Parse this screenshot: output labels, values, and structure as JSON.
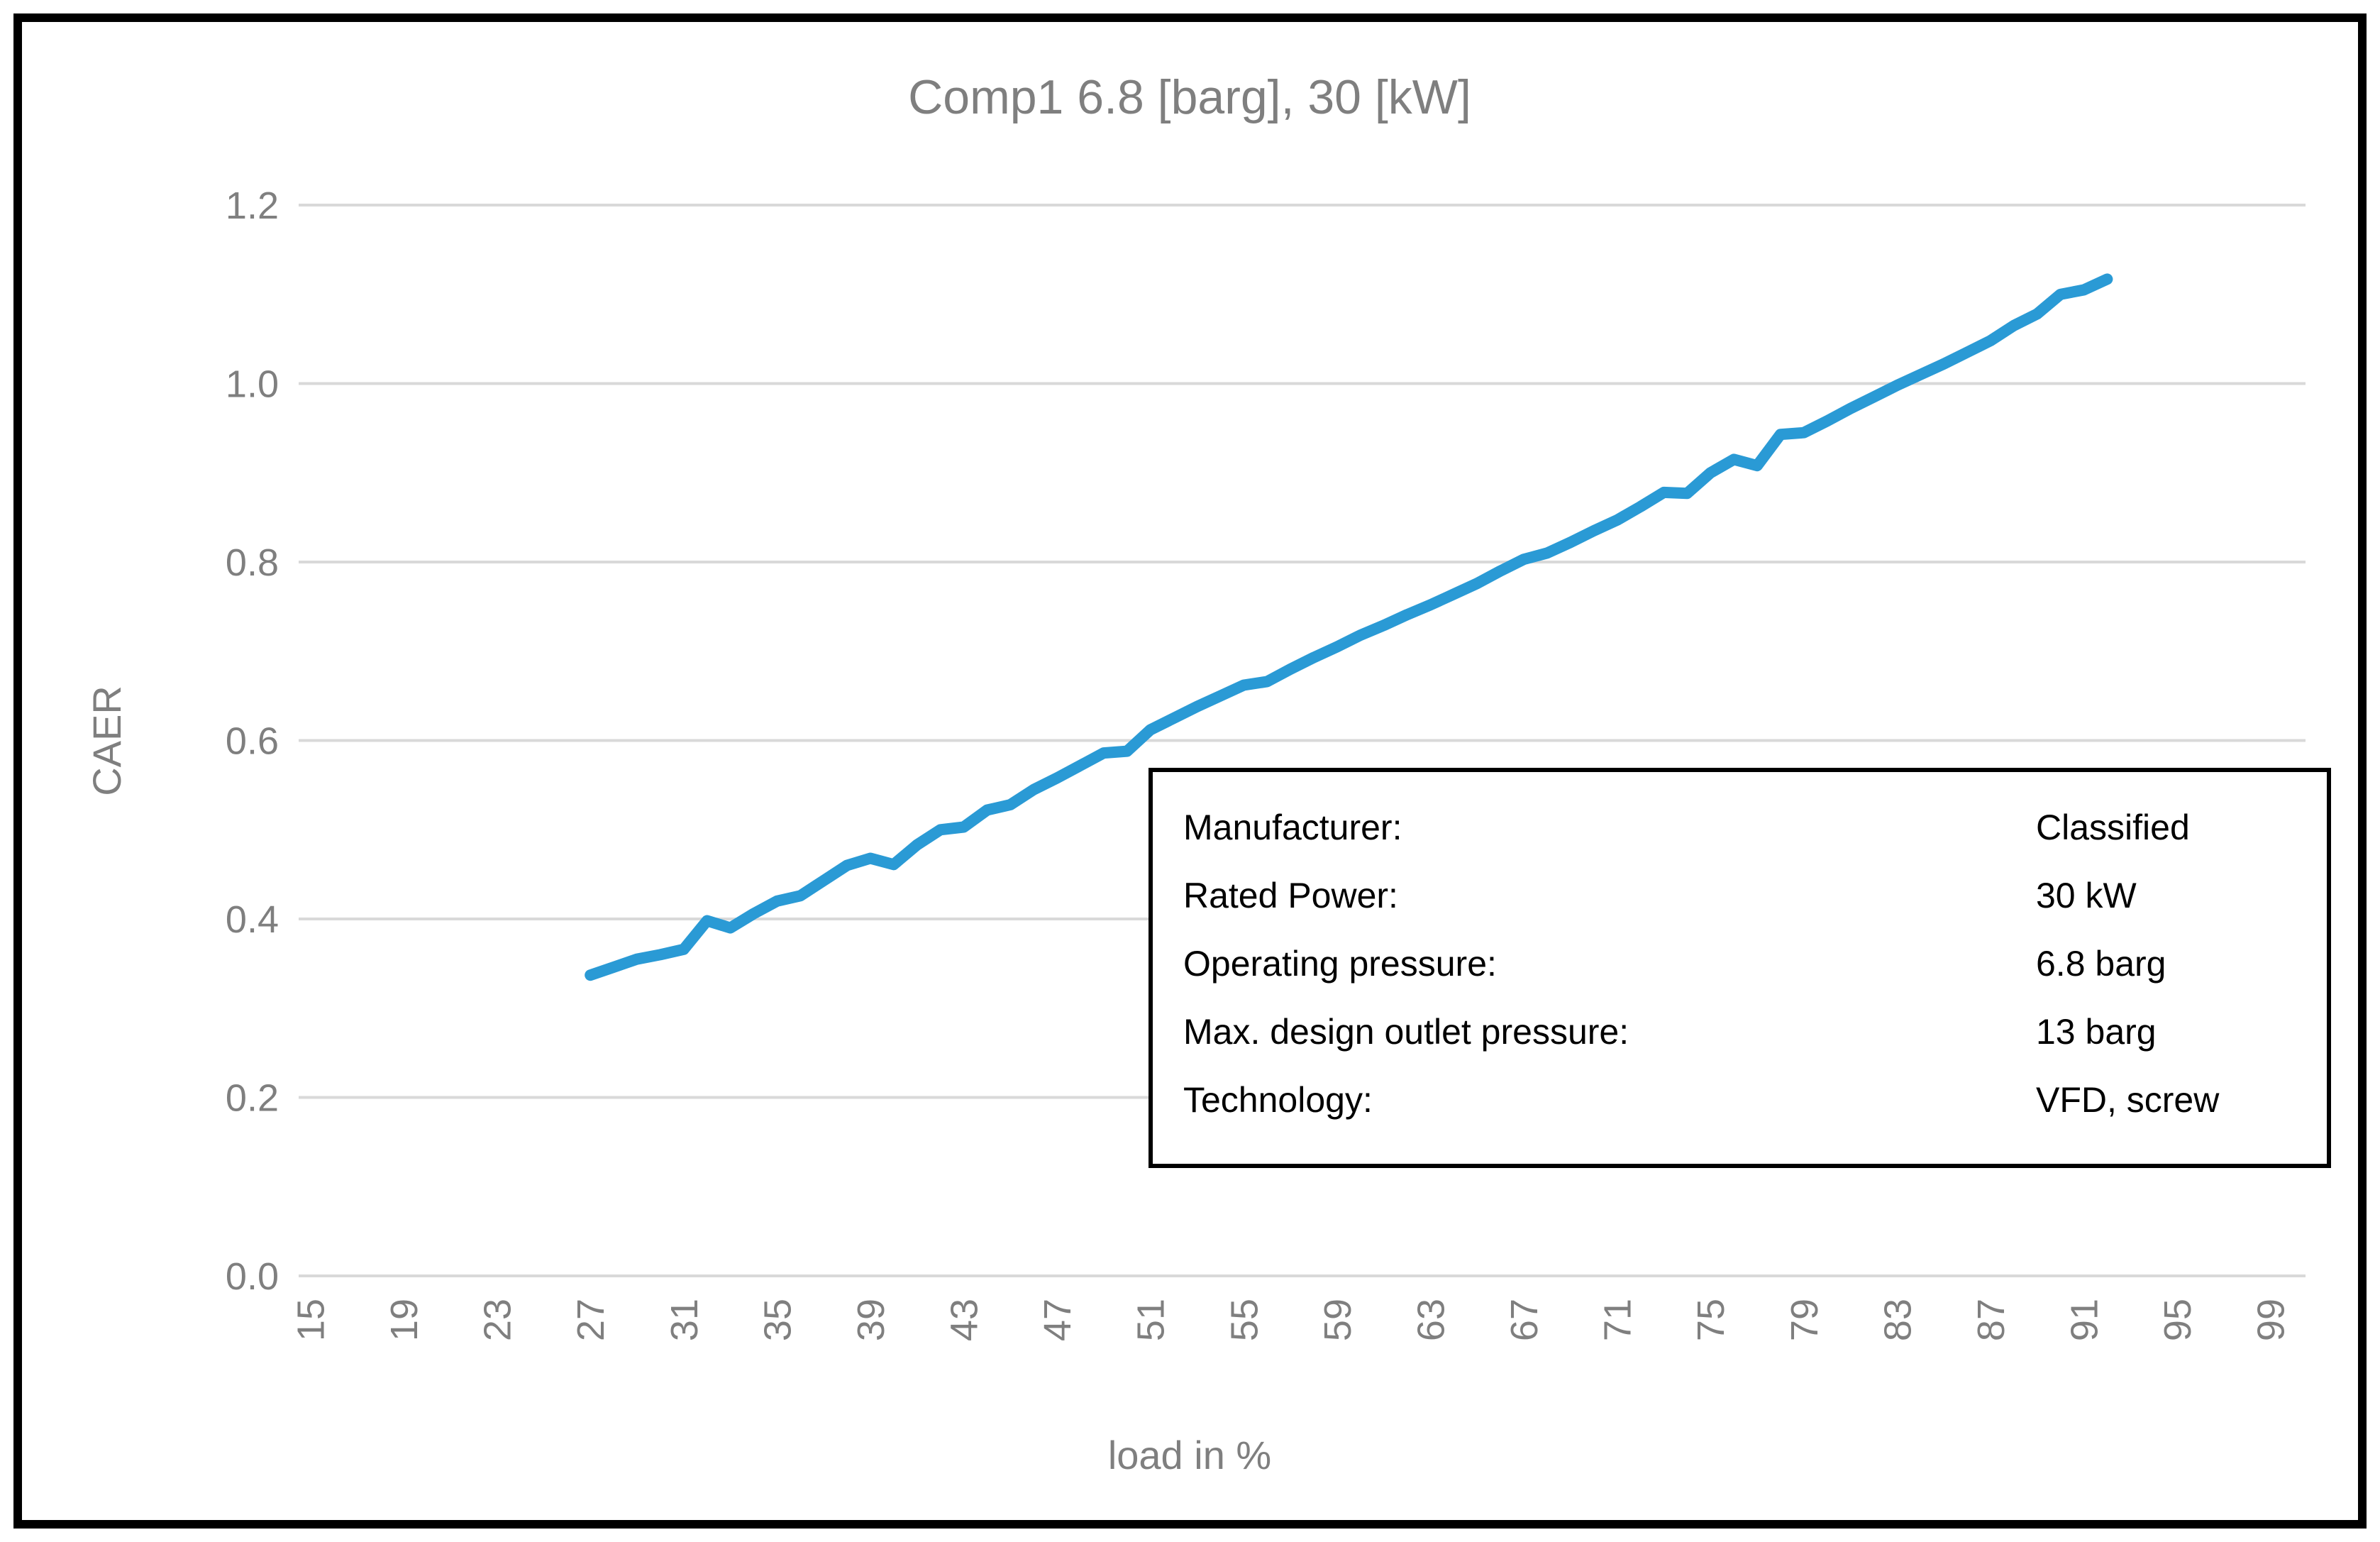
{
  "chart_data": {
    "type": "line",
    "title": "Comp1 6.8 [barg], 30 [kW]",
    "xlabel": "load in %",
    "ylabel": "CAER",
    "xlim": [
      14.5,
      100.5
    ],
    "ylim": [
      0.0,
      1.2
    ],
    "x_tick_labels": [
      15,
      19,
      23,
      27,
      31,
      35,
      39,
      43,
      47,
      51,
      55,
      59,
      63,
      67,
      71,
      75,
      79,
      83,
      87,
      91,
      95,
      99
    ],
    "y_tick_labels": [
      "0.0",
      "0.2",
      "0.4",
      "0.6",
      "0.8",
      "1.0",
      "1.2"
    ],
    "grid": "horizontal-only",
    "legend_position": "none",
    "series": [
      {
        "name": "CAER",
        "color": "#2A9AD5",
        "x": [
          27,
          28,
          29,
          30,
          31,
          32,
          33,
          34,
          35,
          36,
          37,
          38,
          39,
          40,
          41,
          42,
          43,
          44,
          45,
          46,
          47,
          48,
          49,
          50,
          51,
          52,
          53,
          54,
          55,
          56,
          57,
          58,
          59,
          60,
          61,
          62,
          63,
          64,
          65,
          66,
          67,
          68,
          69,
          70,
          71,
          72,
          73,
          74,
          75,
          76,
          77,
          78,
          79,
          80,
          81,
          82,
          83,
          84,
          85,
          86,
          87,
          88,
          89,
          90,
          91,
          92
        ],
        "y": [
          0.337,
          0.346,
          0.355,
          0.36,
          0.366,
          0.398,
          0.39,
          0.406,
          0.42,
          0.426,
          0.443,
          0.46,
          0.468,
          0.461,
          0.483,
          0.5,
          0.503,
          0.522,
          0.528,
          0.545,
          0.558,
          0.572,
          0.586,
          0.588,
          0.612,
          0.625,
          0.638,
          0.65,
          0.662,
          0.666,
          0.68,
          0.693,
          0.705,
          0.718,
          0.729,
          0.741,
          0.752,
          0.764,
          0.776,
          0.79,
          0.803,
          0.81,
          0.822,
          0.835,
          0.847,
          0.862,
          0.878,
          0.877,
          0.9,
          0.915,
          0.908,
          0.943,
          0.945,
          0.958,
          0.972,
          0.985,
          0.998,
          1.01,
          1.022,
          1.035,
          1.048,
          1.065,
          1.078,
          1.1,
          1.105,
          1.117
        ]
      }
    ]
  },
  "info_box": {
    "rows": [
      {
        "label": "Manufacturer:",
        "value": "Classified"
      },
      {
        "label": "Rated Power:",
        "value": "30 kW"
      },
      {
        "label": "Operating pressure:",
        "value": "6.8 barg"
      },
      {
        "label": "Max. design outlet pressure:",
        "value": "13 barg"
      },
      {
        "label": "Technology:",
        "value": "VFD, screw"
      }
    ]
  },
  "colors": {
    "line": "#2A9AD5",
    "grid": "#D9D9D9",
    "text_gray": "#7F7F7F",
    "frame": "#000000"
  }
}
